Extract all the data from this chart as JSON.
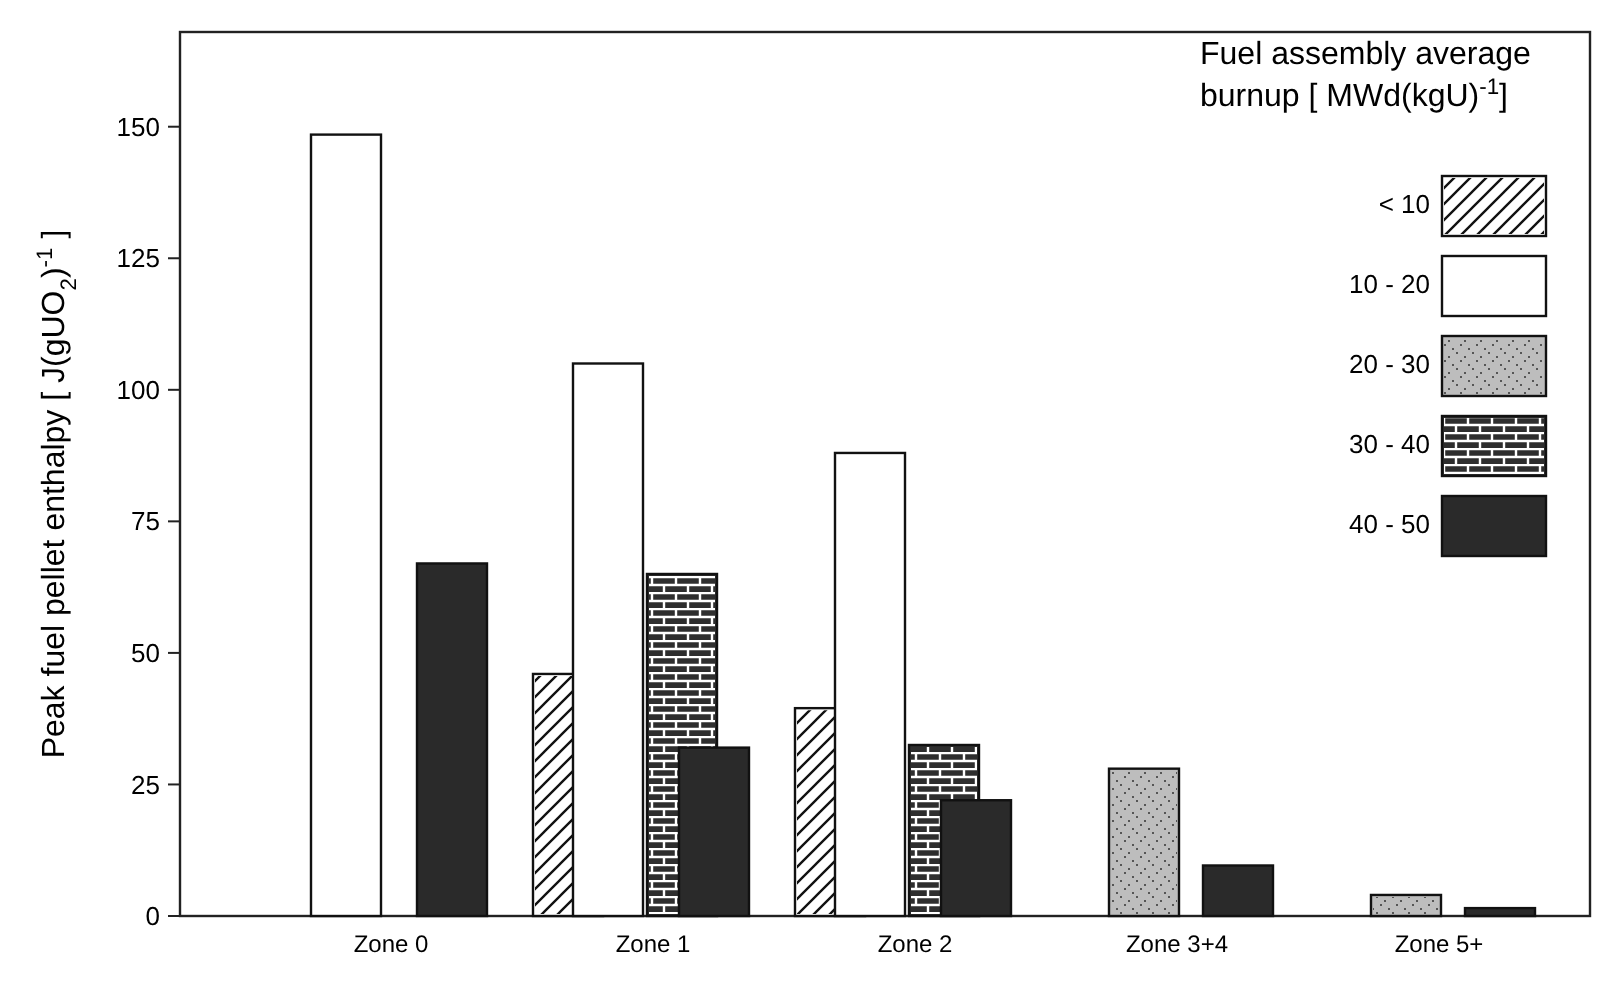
{
  "chart_data": {
    "type": "bar",
    "ylabel": "Peak fuel pellet enthalpy [ J(gUO$_{2}$)$^{-1}$ ]",
    "legend_title": "Fuel assembly average burnup [ MWd(kgU)$^{-1}$]",
    "legend": "top right",
    "categories": [
      "Zone 0",
      "Zone 1",
      "Zone 2",
      "Zone 3+4",
      "Zone 5+"
    ],
    "ylim": [
      0,
      168
    ],
    "yticks": [
      0,
      25,
      50,
      75,
      100,
      125,
      150
    ],
    "series": [
      {
        "name": "< 10",
        "color": "#ffffff",
        "values": [
          null,
          46,
          39.5,
          null,
          null
        ]
      },
      {
        "name": "10 - 20",
        "color": "#ffffff",
        "values": [
          148.5,
          105,
          88,
          null,
          null
        ]
      },
      {
        "name": "20 - 30",
        "color": "#bdbdbd",
        "values": [
          null,
          null,
          null,
          28,
          4
        ]
      },
      {
        "name": "30 - 40",
        "color": "#2e2e2e",
        "values": [
          null,
          65,
          32.5,
          null,
          null
        ]
      },
      {
        "name": "40 - 50",
        "color": "#2a2a2a",
        "values": [
          67,
          32,
          22,
          9.6,
          1.5
        ]
      }
    ]
  }
}
